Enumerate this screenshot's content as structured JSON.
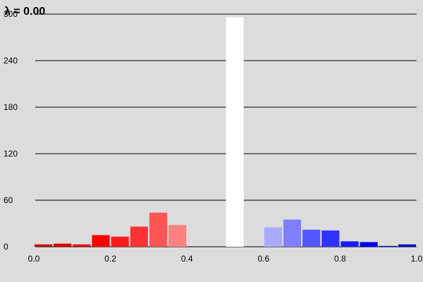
{
  "chart_data": {
    "type": "bar",
    "title": "λ = 0.00",
    "xlabel": "",
    "ylabel": "",
    "xlim": [
      0.0,
      1.0
    ],
    "ylim": [
      0,
      300
    ],
    "xticks": [
      "0.0",
      "0.2",
      "0.4",
      "0.6",
      "0.8",
      "1.0"
    ],
    "yticks": [
      "0",
      "60",
      "120",
      "180",
      "240",
      "300"
    ],
    "grid": "horizontal",
    "bins": [
      {
        "x0": 0.0,
        "x1": 0.05,
        "value": 3,
        "color": "#cc0000"
      },
      {
        "x0": 0.05,
        "x1": 0.1,
        "value": 4,
        "color": "#dd0000"
      },
      {
        "x0": 0.1,
        "x1": 0.15,
        "value": 3,
        "color": "#ee0000"
      },
      {
        "x0": 0.15,
        "x1": 0.2,
        "value": 15,
        "color": "#ff0000"
      },
      {
        "x0": 0.2,
        "x1": 0.25,
        "value": 13,
        "color": "#ff1a1a"
      },
      {
        "x0": 0.25,
        "x1": 0.3,
        "value": 26,
        "color": "#ff3333"
      },
      {
        "x0": 0.3,
        "x1": 0.35,
        "value": 44,
        "color": "#ff5555"
      },
      {
        "x0": 0.35,
        "x1": 0.4,
        "value": 28,
        "color": "#ff8080"
      },
      {
        "x0": 0.5,
        "x1": 0.55,
        "value": 296,
        "color": "#ffffff"
      },
      {
        "x0": 0.6,
        "x1": 0.65,
        "value": 25,
        "color": "#aaaaff"
      },
      {
        "x0": 0.65,
        "x1": 0.7,
        "value": 35,
        "color": "#8080ff"
      },
      {
        "x0": 0.7,
        "x1": 0.75,
        "value": 22,
        "color": "#5555ff"
      },
      {
        "x0": 0.75,
        "x1": 0.8,
        "value": 21,
        "color": "#3333ff"
      },
      {
        "x0": 0.8,
        "x1": 0.85,
        "value": 7,
        "color": "#1a1aff"
      },
      {
        "x0": 0.85,
        "x1": 0.9,
        "value": 6,
        "color": "#0000ee"
      },
      {
        "x0": 0.9,
        "x1": 0.95,
        "value": 1,
        "color": "#0000dd"
      },
      {
        "x0": 0.95,
        "x1": 1.0,
        "value": 3,
        "color": "#0000cc"
      }
    ]
  }
}
